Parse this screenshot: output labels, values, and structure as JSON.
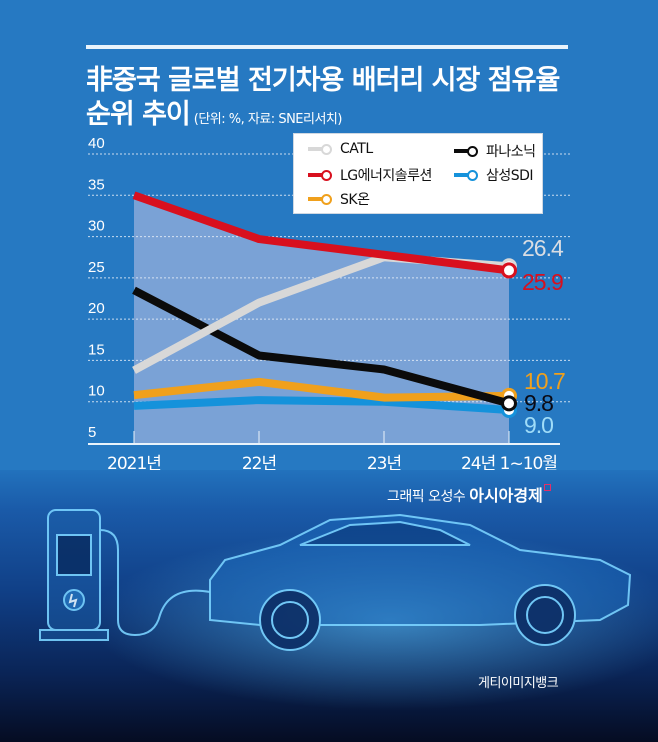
{
  "header": {
    "title_line1": "非중국 글로벌 전기차용 배터리 시장 점유율",
    "title_line2": "순위 추이",
    "subtitle": "(단위: %, 자료: SNE리서치)"
  },
  "chart_data": {
    "type": "line",
    "title": "非중국 글로벌 전기차용 배터리 시장 점유율 순위 추이",
    "subtitle": "(단위: %, 자료: SNE리서치)",
    "xlabel": "",
    "ylabel": "%",
    "categories": [
      "2021년",
      "22년",
      "23년",
      "24년 1~10월"
    ],
    "ylim": [
      5,
      40
    ],
    "yticks": [
      40,
      35,
      30,
      25,
      20,
      15,
      10,
      5
    ],
    "grid": true,
    "legend_position": "top-right",
    "series": [
      {
        "name": "CATL",
        "color": "#d8d8d8",
        "values": [
          13.8,
          22.0,
          27.5,
          26.4
        ],
        "end_label": "26.4",
        "label_color": "#d9dde3"
      },
      {
        "name": "파나소닉",
        "color": "#0b0b0b",
        "values": [
          23.5,
          15.6,
          13.9,
          9.8
        ],
        "end_label": "9.8",
        "label_color": "#0a0a14"
      },
      {
        "name": "LG에너지솔루션",
        "color": "#d8101e",
        "values": [
          35.0,
          29.7,
          27.8,
          25.9
        ],
        "end_label": "25.9",
        "label_color": "#d8101e"
      },
      {
        "name": "삼성SDI",
        "color": "#1592db",
        "values": [
          9.5,
          10.2,
          10.0,
          9.0
        ],
        "end_label": "9.0",
        "label_color": "#9fdcf8"
      },
      {
        "name": "SK온",
        "color": "#f0a01c",
        "values": [
          10.8,
          12.4,
          10.5,
          10.7
        ],
        "end_label": "10.7",
        "label_color": "#f0a01c"
      }
    ]
  },
  "legend": {
    "items": [
      {
        "label": "CATL",
        "color": "#d8d8d8"
      },
      {
        "label": "파나소닉",
        "color": "#0b0b0b"
      },
      {
        "label": "LG에너지솔루션",
        "color": "#d8101e"
      },
      {
        "label": "삼성SDI",
        "color": "#1592db"
      },
      {
        "label": "SK온",
        "color": "#f0a01c"
      }
    ]
  },
  "credits": {
    "graphic_by": "그래픽 오성수",
    "publisher": "아시아경제",
    "photo": "게티이미지뱅크"
  },
  "colors": {
    "background": "#2679c2",
    "plot_fill": "#7aa2d6",
    "grid": "#e6eef8"
  }
}
